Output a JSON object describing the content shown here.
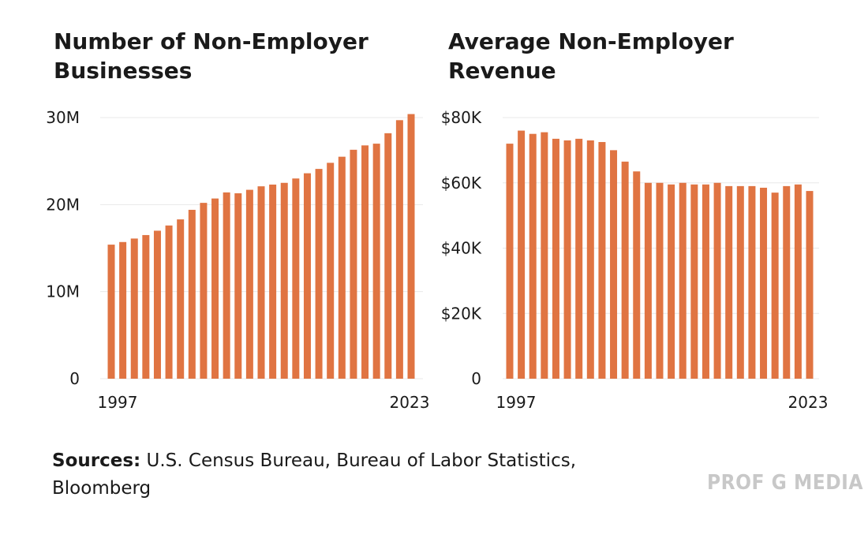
{
  "colors": {
    "bar": "#e07442",
    "grid": "#e8e8e8",
    "text": "#1a1a1a",
    "watermark": "#c8c8c8"
  },
  "chart_data": [
    {
      "type": "bar",
      "title": "Number of Non-Employer Businesses",
      "x": [
        1997,
        1998,
        1999,
        2000,
        2001,
        2002,
        2003,
        2004,
        2005,
        2006,
        2007,
        2008,
        2009,
        2010,
        2011,
        2012,
        2013,
        2014,
        2015,
        2016,
        2017,
        2018,
        2019,
        2020,
        2021,
        2022,
        2023
      ],
      "values": [
        15.4,
        15.7,
        16.1,
        16.5,
        17.0,
        17.6,
        18.3,
        19.4,
        20.2,
        20.7,
        21.4,
        21.3,
        21.7,
        22.1,
        22.3,
        22.5,
        23.0,
        23.6,
        24.1,
        24.8,
        25.5,
        26.3,
        26.8,
        27.0,
        28.2,
        29.7,
        30.4
      ],
      "unit": "M",
      "ylim": [
        0,
        30
      ],
      "y_ticks": [
        "0",
        "10M",
        "20M",
        "30M"
      ],
      "x_tick_labels": [
        "1997",
        "2023"
      ],
      "grid": true
    },
    {
      "type": "bar",
      "title": "Average Non-Employer Revenue",
      "x": [
        1997,
        1998,
        1999,
        2000,
        2001,
        2002,
        2003,
        2004,
        2005,
        2006,
        2007,
        2008,
        2009,
        2010,
        2011,
        2012,
        2013,
        2014,
        2015,
        2016,
        2017,
        2018,
        2019,
        2020,
        2021,
        2022,
        2023
      ],
      "values": [
        72,
        76,
        75,
        75.5,
        73.5,
        73,
        73.5,
        73,
        72.5,
        70,
        66.5,
        63.5,
        60,
        60,
        59.5,
        60,
        59.5,
        59.5,
        60,
        59,
        59,
        59,
        58.5,
        57,
        59,
        59.5,
        57.5
      ],
      "unit": "K USD",
      "ylim": [
        0,
        80
      ],
      "y_ticks": [
        "0",
        "$20K",
        "$40K",
        "$60K",
        "$80K"
      ],
      "x_tick_labels": [
        "1997",
        "2023"
      ],
      "grid": true
    }
  ],
  "footer": {
    "sources_label": "Sources:",
    "sources_text": "U.S. Census Bureau, Bureau of Labor Statistics, Bloomberg",
    "watermark": "PROF G MEDIA"
  }
}
